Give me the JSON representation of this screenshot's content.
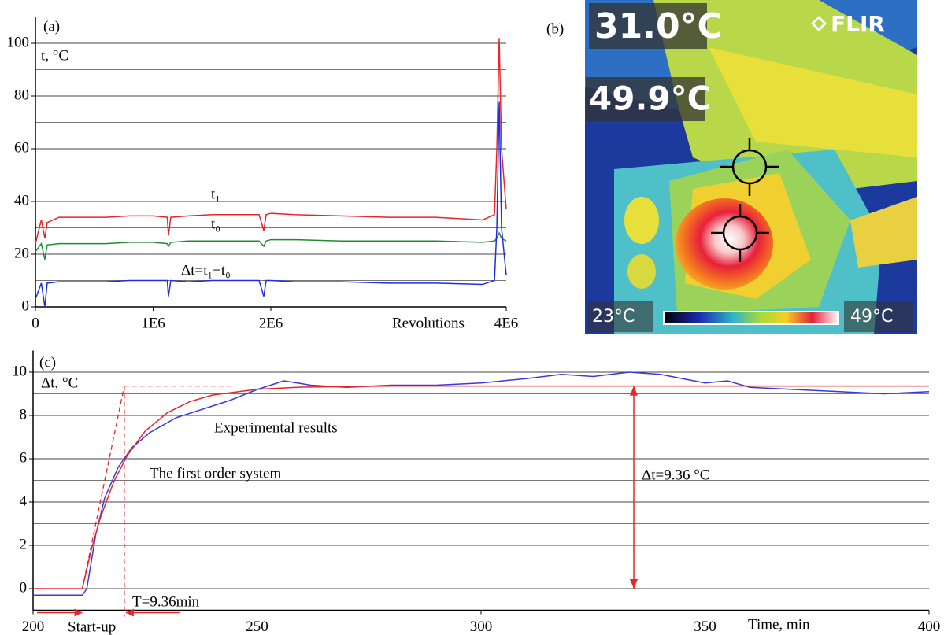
{
  "chart_data": [
    {
      "type": "line",
      "x_label": "Revolutions",
      "y_label": "t, °C",
      "annotations": [
        "(a)"
      ],
      "x": [
        0,
        50000,
        80000,
        100000,
        200000,
        400000,
        600000,
        800000,
        1000000,
        1120000,
        1130000,
        1150000,
        1300000,
        1500000,
        1700000,
        1900000,
        1940000,
        1960000,
        2000000,
        2200000,
        2600000,
        3000000,
        3400000,
        3800000,
        3900000,
        3920000,
        3940000,
        3960000,
        4000000
      ],
      "series": [
        {
          "name": "t₁",
          "color": "#e8262a",
          "values": [
            24,
            33,
            26,
            32,
            34,
            34,
            34,
            34.5,
            34.5,
            34,
            27,
            34,
            34.5,
            35,
            35,
            35,
            29,
            35,
            35.5,
            35,
            34.5,
            34,
            34,
            33,
            35,
            60,
            102,
            60,
            37
          ]
        },
        {
          "name": "t₀",
          "color": "#1e8c2e",
          "values": [
            21,
            24,
            18,
            23.5,
            24,
            24,
            24,
            24.5,
            24.5,
            24,
            23,
            24.5,
            25,
            25,
            25,
            25,
            23,
            25,
            25.5,
            25.5,
            25,
            25,
            25,
            24.5,
            25,
            26,
            28,
            26,
            25
          ]
        },
        {
          "name": "Δt=t₁−t₀",
          "color": "#1f2fe0",
          "values": [
            3,
            9,
            0,
            9,
            9.5,
            9.5,
            9.5,
            10,
            10,
            10,
            4,
            10,
            9.5,
            10,
            10,
            10,
            4,
            10,
            10,
            9.5,
            9.5,
            9,
            9,
            8.5,
            10,
            30,
            78,
            30,
            12
          ]
        }
      ],
      "xlim": [
        0,
        4000000
      ],
      "ylim": [
        0,
        110
      ],
      "xticks": [
        0,
        {
          "value": 1000000,
          "label": "1E6"
        },
        {
          "value": 2000000,
          "label": "2E6"
        },
        {
          "value": 4000000,
          "label": "4E6"
        }
      ],
      "yticks": [
        0,
        20,
        40,
        60,
        80,
        100
      ],
      "minor_yticks": [
        10,
        30,
        50,
        70,
        90
      ],
      "grid": true
    },
    {
      "type": "line",
      "x_label": "Time, min",
      "y_label": "Δt, °C",
      "annotations": [
        "(c)",
        "Δt=9.36 °C",
        "T=9.36min",
        "Start-up"
      ],
      "start_x": 211,
      "time_constant": 9.36,
      "steady_value": 9.36,
      "series": [
        {
          "name": "Experimental results",
          "color": "#3a3ae0",
          "x": [
            200,
            211,
            212,
            214,
            216,
            219,
            222,
            226,
            232,
            238,
            244,
            250,
            256,
            262,
            270,
            280,
            290,
            300,
            310,
            318,
            325,
            333,
            340,
            345,
            350,
            355,
            360,
            370,
            380,
            390,
            400
          ],
          "values": [
            -0.3,
            -0.3,
            0,
            2.5,
            4.2,
            5.6,
            6.5,
            7.2,
            7.9,
            8.3,
            8.7,
            9.2,
            9.6,
            9.4,
            9.3,
            9.4,
            9.4,
            9.5,
            9.7,
            9.9,
            9.8,
            10,
            9.9,
            9.7,
            9.5,
            9.6,
            9.3,
            9.2,
            9.1,
            9.0,
            9.1
          ]
        },
        {
          "name": "The first order system",
          "color": "#e8262a",
          "x": [
            200,
            211,
            213,
            215,
            218,
            221,
            225,
            230,
            235,
            240,
            250,
            260,
            280,
            300,
            400
          ],
          "values": [
            0,
            0,
            1.8,
            3.26,
            4.93,
            6.14,
            7.27,
            8.13,
            8.64,
            8.94,
            9.21,
            9.31,
            9.36,
            9.36,
            9.36
          ]
        }
      ],
      "xlim": [
        200,
        400
      ],
      "ylim": [
        -1,
        11
      ],
      "xticks": [
        200,
        250,
        300,
        350,
        400
      ],
      "yticks": [
        0,
        2,
        4,
        6,
        8,
        10
      ],
      "minor_yticks": [
        1,
        3,
        5,
        7,
        9
      ],
      "grid": true
    }
  ],
  "thermal_image": {
    "panel_label": "(b)",
    "spot_temp": "31.0°C",
    "brand": "FLIR",
    "max_temp": "49.9°C",
    "scale_min": "23°C",
    "scale_max": "49°C"
  }
}
